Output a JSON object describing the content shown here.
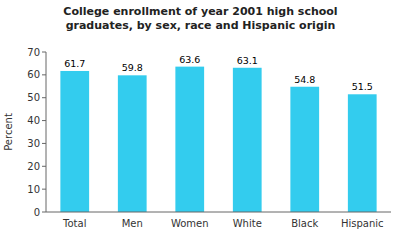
{
  "chart_data": {
    "type": "bar",
    "title": "College enrollment of year 2001 high school\ngraduates, by sex, race and Hispanic origin",
    "categories": [
      "Total",
      "Men",
      "Women",
      "White",
      "Black",
      "Hispanic"
    ],
    "values": [
      61.7,
      59.8,
      63.6,
      63.1,
      54.8,
      51.5
    ],
    "color": "#33CCEE",
    "ylabel": "Percent",
    "ylim": [
      0,
      70
    ],
    "yticks": [
      0,
      10,
      20,
      30,
      40,
      50,
      60,
      70
    ],
    "grid": false,
    "data_labels": true
  }
}
